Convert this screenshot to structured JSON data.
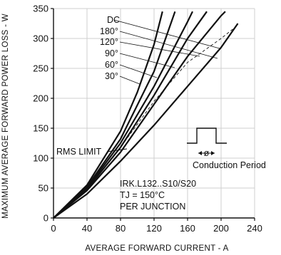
{
  "chart_data": {
    "type": "line",
    "xlabel": "AVERAGE FORWARD CURRENT - A",
    "ylabel": "MAXIMUM AVERAGE FORWARD POWER LOSS - W",
    "xlim": [
      0,
      240
    ],
    "ylim": [
      0,
      350
    ],
    "x_ticks": [
      "0",
      "40",
      "80",
      "120",
      "160",
      "200",
      "240"
    ],
    "y_ticks": [
      "0",
      "50",
      "100",
      "150",
      "200",
      "250",
      "300",
      "350"
    ],
    "grid": true,
    "series": [
      {
        "name": "30",
        "x": [
          0,
          40,
          80,
          100,
          120,
          130
        ],
        "y": [
          0,
          55,
          145,
          210,
          290,
          345
        ]
      },
      {
        "name": "60",
        "x": [
          0,
          40,
          80,
          120,
          145
        ],
        "y": [
          0,
          52,
          132,
          245,
          345
        ]
      },
      {
        "name": "90",
        "x": [
          0,
          40,
          80,
          120,
          160,
          166
        ],
        "y": [
          0,
          50,
          125,
          220,
          328,
          345
        ]
      },
      {
        "name": "120",
        "x": [
          0,
          40,
          80,
          120,
          160,
          183
        ],
        "y": [
          0,
          48,
          118,
          205,
          300,
          345
        ]
      },
      {
        "name": "180",
        "x": [
          0,
          40,
          80,
          120,
          160,
          200,
          205
        ],
        "y": [
          0,
          46,
          110,
          190,
          270,
          338,
          345
        ]
      },
      {
        "name": "DC",
        "x": [
          0,
          40,
          80,
          120,
          160,
          200,
          220
        ],
        "y": [
          0,
          40,
          95,
          155,
          220,
          285,
          325
        ]
      }
    ],
    "rms_limit": {
      "label": "RMS LIMIT",
      "y": 150
    },
    "legend_labels": [
      "DC",
      "180°",
      "120°",
      "90°",
      "60°",
      "30°"
    ],
    "annotations": [
      "Conduction Period",
      "IRK.L132..S10/S20",
      "TJ = 150°C",
      "PER JUNCTION"
    ],
    "colors": {
      "curve": "#111111",
      "grid": "#cfcfcf",
      "axis": "#111111"
    }
  }
}
